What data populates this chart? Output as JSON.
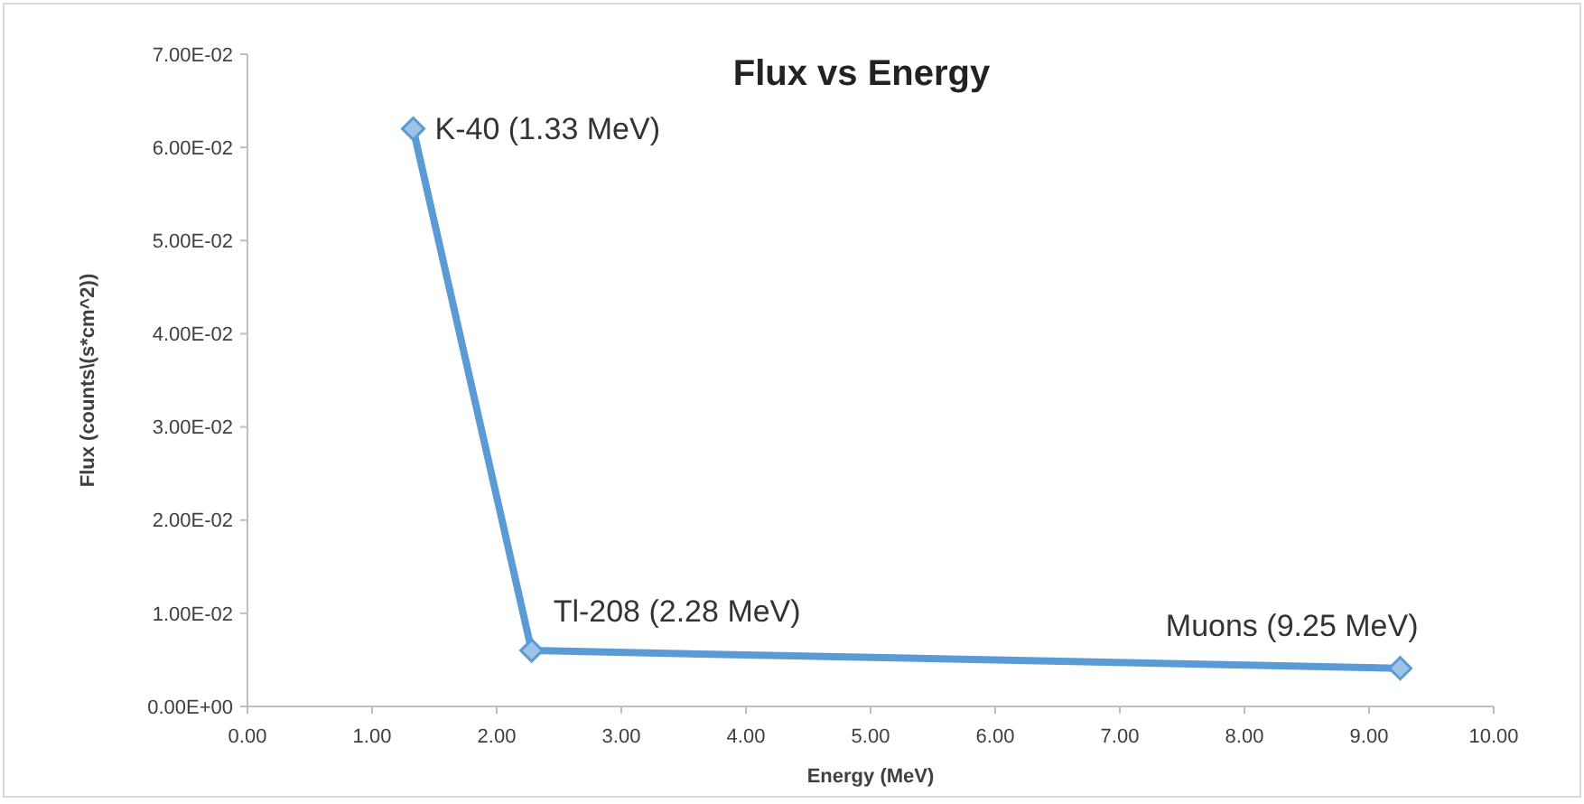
{
  "chart_data": {
    "type": "line",
    "title": "Flux vs Energy",
    "xlabel": "Energy (MeV)",
    "ylabel": "Flux (counts\\(s*cm^2))",
    "x": [
      1.33,
      2.28,
      9.25
    ],
    "series": [
      {
        "color": "#5b9bd5",
        "values": [
          0.062,
          0.006,
          0.0041
        ]
      }
    ],
    "marker": "diamond",
    "line_style": "solid",
    "grid": false,
    "xlim": [
      0,
      10
    ],
    "ylim": [
      0,
      0.07
    ],
    "xticks": [
      {
        "value": 0,
        "label": "0.00"
      },
      {
        "value": 1,
        "label": "1.00"
      },
      {
        "value": 2,
        "label": "2.00"
      },
      {
        "value": 3,
        "label": "3.00"
      },
      {
        "value": 4,
        "label": "4.00"
      },
      {
        "value": 5,
        "label": "5.00"
      },
      {
        "value": 6,
        "label": "6.00"
      },
      {
        "value": 7,
        "label": "7.00"
      },
      {
        "value": 8,
        "label": "8.00"
      },
      {
        "value": 9,
        "label": "9.00"
      },
      {
        "value": 10,
        "label": "10.00"
      }
    ],
    "yticks": [
      {
        "value": 0,
        "label": "0.00E+00"
      },
      {
        "value": 0.01,
        "label": "1.00E-02"
      },
      {
        "value": 0.02,
        "label": "2.00E-02"
      },
      {
        "value": 0.03,
        "label": "3.00E-02"
      },
      {
        "value": 0.04,
        "label": "4.00E-02"
      },
      {
        "value": 0.05,
        "label": "5.00E-02"
      },
      {
        "value": 0.06,
        "label": "6.00E-02"
      },
      {
        "value": 0.07,
        "label": "7.00E-02"
      }
    ],
    "annotations": [
      {
        "text": "K-40 (1.33 MeV)",
        "x": 1.33,
        "y": 0.062
      },
      {
        "text": "Tl-208 (2.28 MeV)",
        "x": 2.28,
        "y": 0.006
      },
      {
        "text": "Muons (9.25 MeV)",
        "x": 9.25,
        "y": 0.0041
      }
    ]
  }
}
